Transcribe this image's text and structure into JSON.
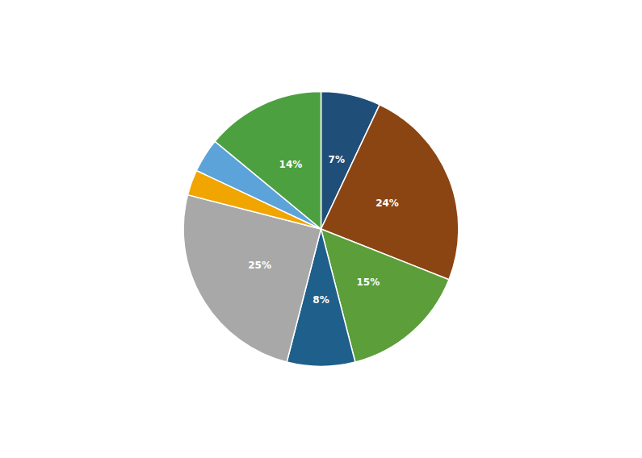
{
  "chart_data": {
    "type": "pie",
    "values": [
      7,
      24,
      15,
      8,
      25,
      3,
      4,
      14
    ],
    "value_labels": [
      "7%",
      "24%",
      "15%",
      "8%",
      "25%",
      null,
      null,
      "14%"
    ],
    "colors": [
      "#1F4E79",
      "#8B4513",
      "#5B9E3A",
      "#1F5F8B",
      "#A8A8A8",
      "#F0A500",
      "#5BA3D9",
      "#4DA040"
    ]
  }
}
